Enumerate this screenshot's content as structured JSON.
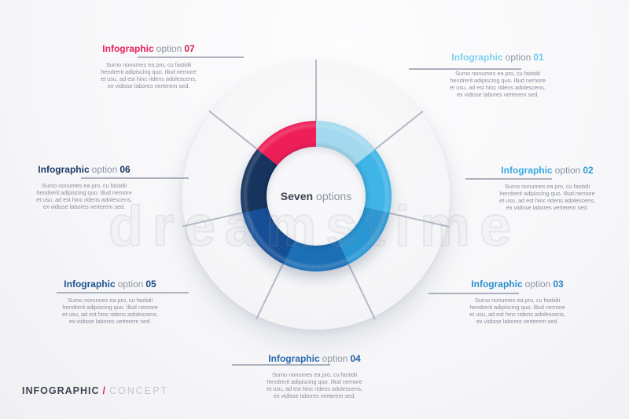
{
  "center": {
    "bold": "Seven",
    "regular": "options"
  },
  "watermark": "dreamstime",
  "footer": {
    "lead": "INFOGRAPHIC",
    "slash": "/",
    "tail": "CONCEPT"
  },
  "ring": {
    "segments": [
      {
        "option": "01",
        "color": "#a3d9ef",
        "from_deg": 0,
        "to_deg": 51.43
      },
      {
        "option": "02",
        "color": "#3fb4e7",
        "from_deg": 51.43,
        "to_deg": 102.86
      },
      {
        "option": "03",
        "color": "#2a96d3",
        "from_deg": 102.86,
        "to_deg": 154.29
      },
      {
        "option": "04",
        "color": "#1d6fb5",
        "from_deg": 154.29,
        "to_deg": 205.71
      },
      {
        "option": "05",
        "color": "#164f96",
        "from_deg": 205.71,
        "to_deg": 257.14
      },
      {
        "option": "06",
        "color": "#16345e",
        "from_deg": 257.14,
        "to_deg": 308.57
      },
      {
        "option": "07",
        "color": "#ee1f58",
        "from_deg": 308.57,
        "to_deg": 360
      }
    ]
  },
  "options": [
    {
      "number": "01",
      "title_lead": "Infographic",
      "title_mid": "option",
      "color": "#7fd0ec",
      "number_color": "#6ec9e9",
      "body": "Sumo nonumes ea pro, cu fastidii\nhendrerit adipiscing quo. Illud nemore\net usu, ad est hinc ridens adolescens,\nex vidisse labores verterem sed."
    },
    {
      "number": "02",
      "title_lead": "Infographic",
      "title_mid": "option",
      "color": "#3aa9e0",
      "number_color": "#2d9bd8",
      "body": "Sumo nonumes ea pro, cu fastidii\nhendrerit adipiscing quo. Illud nemore\net usu, ad est hinc ridens adolescens,\nex vidisse labores verterem sed."
    },
    {
      "number": "03",
      "title_lead": "Infographic",
      "title_mid": "option",
      "color": "#2d8ecd",
      "number_color": "#2884c4",
      "body": "Sumo nonumes ea pro, cu fastidii\nhendrerit adipiscing quo. Illud nemore\net usu, ad est hinc ridens adolescens,\nex vidisse labores verterem sed."
    },
    {
      "number": "04",
      "title_lead": "Infographic",
      "title_mid": "option",
      "color": "#2a68ad",
      "number_color": "#235d9f",
      "body": "Sumo nonumes ea pro, cu fastidii\nhendrerit adipiscing quo. Illud nemore\net usu, ad est hinc ridens adolescens,\nex vidisse labores verterem sed."
    },
    {
      "number": "05",
      "title_lead": "Infographic",
      "title_mid": "option",
      "color": "#1c5293",
      "number_color": "#184a87",
      "body": "Sumo nonumes ea pro, cu fastidii\nhendrerit adipiscing quo. Illud nemore\net usu, ad est hinc ridens adolescens,\nex vidisse labores verterem sed."
    },
    {
      "number": "06",
      "title_lead": "Infographic",
      "title_mid": "option",
      "color": "#1b3a66",
      "number_color": "#17335b",
      "body": "Sumo nonumes ea pro, cu fastidii\nhendrerit adipiscing quo. Illud nemore\net usu, ad est hinc ridens adolescens,\nex vidisse labores verterem sed."
    },
    {
      "number": "07",
      "title_lead": "Infographic",
      "title_mid": "option",
      "color": "#e8235c",
      "number_color": "#d31f52",
      "body": "Sumo nonumes ea pro, cu fastidii\nhendrerit adipiscing quo. Illud nemore\net usu, ad est hinc ridens adolescens,\nex vidisse labores verterem sed."
    }
  ],
  "chart_data": {
    "type": "pie",
    "title": "Seven options",
    "categories": [
      "Infographic option 01",
      "Infographic option 02",
      "Infographic option 03",
      "Infographic option 04",
      "Infographic option 05",
      "Infographic option 06",
      "Infographic option 07"
    ],
    "values": [
      1,
      1,
      1,
      1,
      1,
      1,
      1
    ],
    "colors": [
      "#a3d9ef",
      "#3fb4e7",
      "#2a96d3",
      "#1d6fb5",
      "#164f96",
      "#16345e",
      "#ee1f58"
    ],
    "legend_position": "around",
    "notes": "donut chart, 7 equal segments starting at 12 o'clock, clockwise"
  }
}
